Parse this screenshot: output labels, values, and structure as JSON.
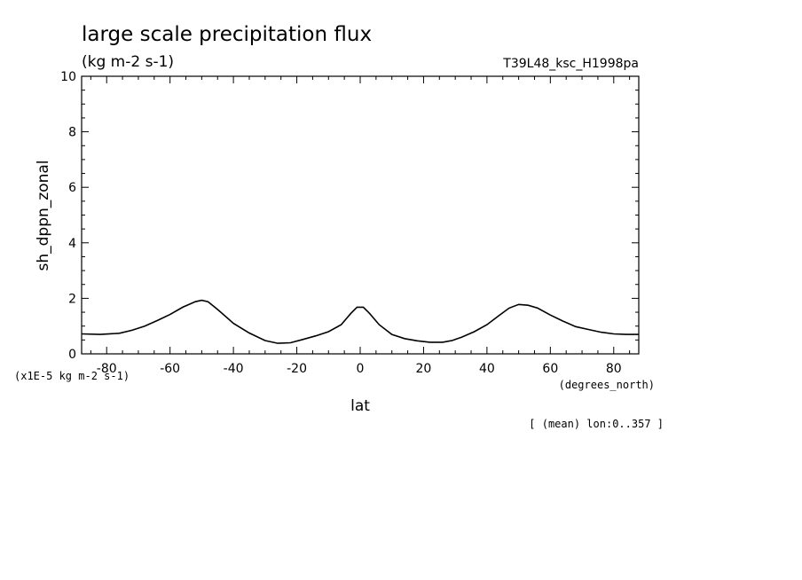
{
  "chart_data": {
    "type": "line",
    "title": "large scale precipitation flux",
    "subtitle": "(kg m-2 s-1)",
    "run_label": "T39L48_ksc_H1998pa",
    "ylabel": "sh_dppn_zonal",
    "xlabel": "lat",
    "xunit": "(degrees_north)",
    "yunit": "(x1E-5 kg m-2 s-1)",
    "footer": "[ (mean) lon:0..357 ]",
    "xlim": [
      -87.9,
      87.9
    ],
    "ylim": [
      0,
      10
    ],
    "xticks": [
      -80,
      -60,
      -40,
      -20,
      0,
      20,
      40,
      60,
      80
    ],
    "xtick_labels": [
      "-80",
      "-60",
      "-40",
      "-20",
      "0",
      "20",
      "40",
      "60",
      "80"
    ],
    "yticks": [
      0,
      2,
      4,
      6,
      8,
      10
    ],
    "ytick_labels": [
      "0",
      "2",
      "4",
      "6",
      "8",
      "10"
    ],
    "grid": false,
    "series": [
      {
        "x": [
          -87.9,
          -82,
          -76,
          -72,
          -68,
          -64,
          -60,
          -56,
          -52,
          -50,
          -48,
          -45,
          -40,
          -35,
          -30,
          -26,
          -22,
          -18,
          -14,
          -10,
          -6,
          -3,
          -1,
          1,
          3,
          6,
          10,
          14,
          18,
          22,
          26,
          29,
          32,
          36,
          40,
          44,
          47,
          50,
          53,
          56,
          60,
          64,
          68,
          72,
          76,
          80,
          84,
          87.9
        ],
        "y": [
          0.72,
          0.7,
          0.74,
          0.85,
          1.0,
          1.2,
          1.42,
          1.68,
          1.88,
          1.93,
          1.88,
          1.6,
          1.1,
          0.75,
          0.48,
          0.38,
          0.4,
          0.52,
          0.65,
          0.8,
          1.05,
          1.45,
          1.68,
          1.68,
          1.45,
          1.05,
          0.7,
          0.55,
          0.47,
          0.42,
          0.42,
          0.48,
          0.6,
          0.8,
          1.05,
          1.4,
          1.65,
          1.78,
          1.75,
          1.65,
          1.4,
          1.18,
          0.98,
          0.88,
          0.78,
          0.72,
          0.7,
          0.7
        ],
        "color": "#000000"
      }
    ]
  }
}
